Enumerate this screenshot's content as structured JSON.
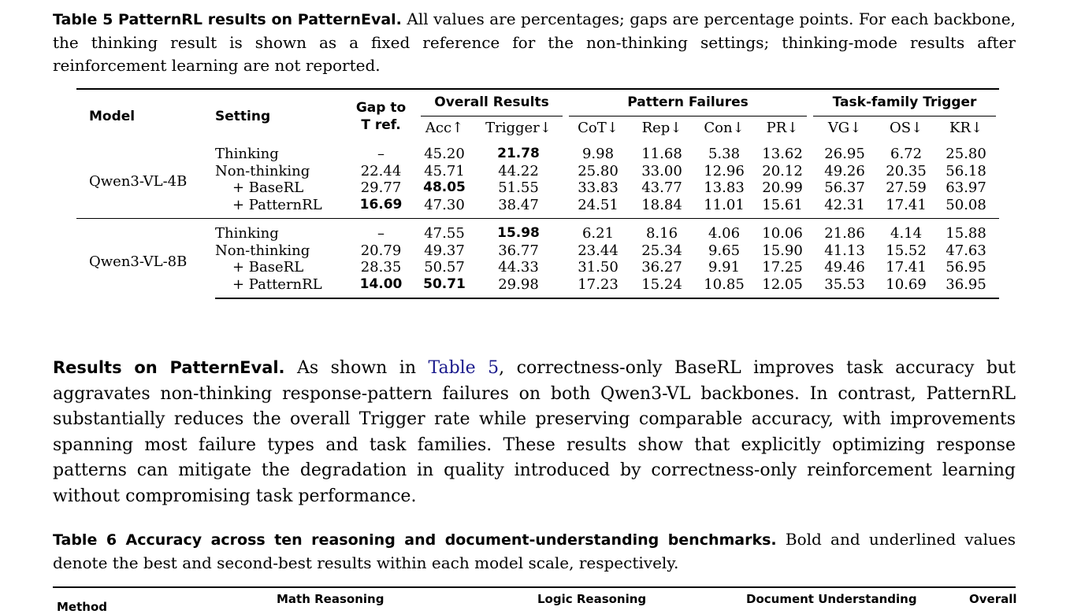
{
  "table5": {
    "caption_label": "Table 5  PatternRL results on PatternEval.",
    "caption_text": " All values are percentages; gaps are percentage points. For each backbone, the thinking result is shown as a fixed reference for the non-thinking settings; thinking-mode results after reinforcement learning are not reported.",
    "headers": {
      "model": "Model",
      "setting": "Setting",
      "gap_line1": "Gap to",
      "gap_line2": "T ref.",
      "overall": "Overall Results",
      "pattern": "Pattern Failures",
      "task": "Task-family Trigger"
    },
    "subheaders": [
      "Acc↑",
      "Trigger↓",
      "CoT↓",
      "Rep↓",
      "Con↓",
      "PR↓",
      "VG↓",
      "OS↓",
      "KR↓"
    ],
    "groups": [
      {
        "model": "Qwen3-VL-4B",
        "rows": [
          {
            "setting": "Thinking",
            "gap": "–",
            "acc": "45.20",
            "trigger": "21.78",
            "cot": "9.98",
            "rep": "11.68",
            "con": "5.38",
            "pr": "13.62",
            "vg": "26.95",
            "os": "6.72",
            "kr": "25.80"
          },
          {
            "setting": "Non-thinking",
            "gap": "22.44",
            "acc": "45.71",
            "trigger": "44.22",
            "cot": "25.80",
            "rep": "33.00",
            "con": "12.96",
            "pr": "20.12",
            "vg": "49.26",
            "os": "20.35",
            "kr": "56.18"
          },
          {
            "setting": "+ BaseRL",
            "gap": "29.77",
            "acc": "48.05",
            "trigger": "51.55",
            "cot": "33.83",
            "rep": "43.77",
            "con": "13.83",
            "pr": "20.99",
            "vg": "56.37",
            "os": "27.59",
            "kr": "63.97"
          },
          {
            "setting": "+ PatternRL",
            "gap": "16.69",
            "acc": "47.30",
            "trigger": "38.47",
            "cot": "24.51",
            "rep": "18.84",
            "con": "11.01",
            "pr": "15.61",
            "vg": "42.31",
            "os": "17.41",
            "kr": "50.08"
          }
        ]
      },
      {
        "model": "Qwen3-VL-8B",
        "rows": [
          {
            "setting": "Thinking",
            "gap": "–",
            "acc": "47.55",
            "trigger": "15.98",
            "cot": "6.21",
            "rep": "8.16",
            "con": "4.06",
            "pr": "10.06",
            "vg": "21.86",
            "os": "4.14",
            "kr": "15.88"
          },
          {
            "setting": "Non-thinking",
            "gap": "20.79",
            "acc": "49.37",
            "trigger": "36.77",
            "cot": "23.44",
            "rep": "25.34",
            "con": "9.65",
            "pr": "15.90",
            "vg": "41.13",
            "os": "15.52",
            "kr": "47.63"
          },
          {
            "setting": "+ BaseRL",
            "gap": "28.35",
            "acc": "50.57",
            "trigger": "44.33",
            "cot": "31.50",
            "rep": "36.27",
            "con": "9.91",
            "pr": "17.25",
            "vg": "49.46",
            "os": "17.41",
            "kr": "56.95"
          },
          {
            "setting": "+ PatternRL",
            "gap": "14.00",
            "acc": "50.71",
            "trigger": "29.98",
            "cot": "17.23",
            "rep": "15.24",
            "con": "10.85",
            "pr": "12.05",
            "vg": "35.53",
            "os": "10.69",
            "kr": "36.95"
          }
        ]
      }
    ]
  },
  "paragraph": {
    "heading": "Results on PatternEval.",
    "text_before_link": " As shown in ",
    "link": "Table 5",
    "text_after_link": ", correctness-only BaseRL improves task accuracy but aggravates non-thinking response-pattern failures on both Qwen3-VL backbones. In contrast, PatternRL substantially reduces the overall Trigger rate while preserving comparable accuracy, with improvements spanning most failure types and task families. These results show that explicitly optimizing response patterns can mitigate the degradation in quality introduced by correctness-only reinforcement learning without compromising task performance."
  },
  "table6": {
    "caption_label": "Table 6  Accuracy across ten reasoning and document-understanding benchmarks.",
    "caption_text": " Bold and underlined values denote the best and second-best results within each model scale, respectively.",
    "headers": {
      "method": "Method",
      "math": "Math Reasoning",
      "logic": "Logic Reasoning",
      "document": "Document Understanding",
      "overall": "Overall"
    }
  },
  "colors": {
    "link": "#1a1a8c",
    "text": "#000000"
  }
}
